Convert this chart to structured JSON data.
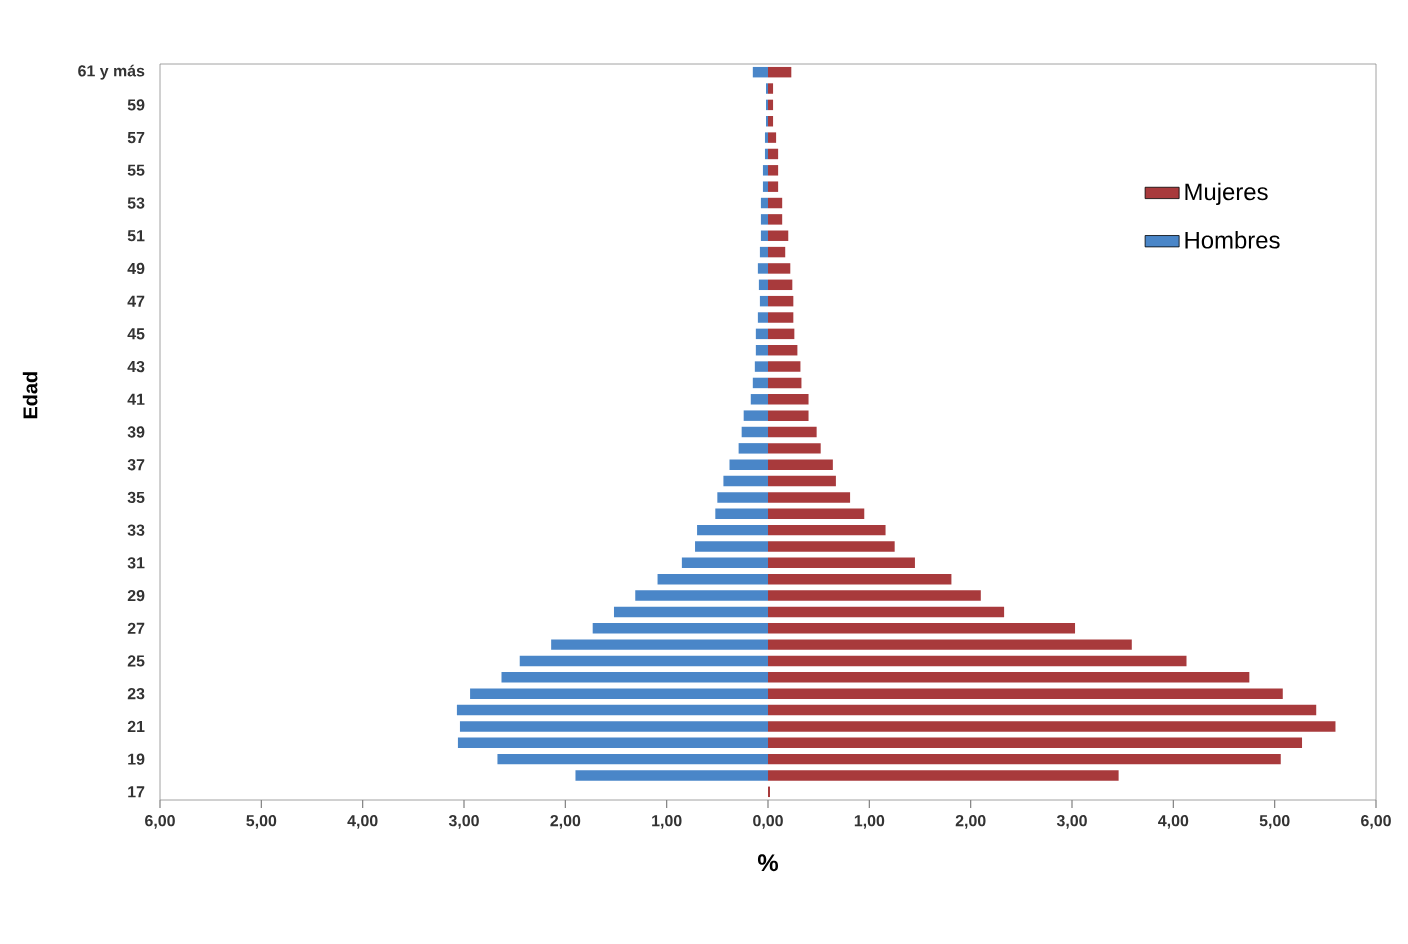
{
  "chart_data": {
    "type": "bar",
    "orientation": "horizontal",
    "xlabel": "%",
    "ylabel": "Edad",
    "categories": [
      "61 y más",
      null,
      "59",
      null,
      "57",
      null,
      "55",
      null,
      "53",
      null,
      "51",
      null,
      "49",
      null,
      "47",
      null,
      "45",
      null,
      "43",
      null,
      "41",
      null,
      "39",
      null,
      "37",
      null,
      "35",
      null,
      "33",
      null,
      "31",
      null,
      "29",
      null,
      "27",
      null,
      "25",
      null,
      "23",
      null,
      "21",
      null,
      "19",
      null,
      "17"
    ],
    "series": [
      {
        "name": "Mujeres",
        "color": "#a83a3c",
        "values": [
          0.23,
          0.05,
          0.05,
          0.05,
          0.08,
          0.1,
          0.1,
          0.1,
          0.14,
          0.14,
          0.2,
          0.17,
          0.22,
          0.24,
          0.25,
          0.25,
          0.26,
          0.29,
          0.32,
          0.33,
          0.4,
          0.4,
          0.48,
          0.52,
          0.64,
          0.67,
          0.81,
          0.95,
          1.16,
          1.25,
          1.45,
          1.81,
          2.1,
          2.33,
          3.03,
          3.59,
          4.13,
          4.75,
          5.08,
          5.41,
          5.6,
          5.27,
          5.06,
          3.46,
          0.02
        ]
      },
      {
        "name": "Hombres",
        "color": "#4a86c8",
        "values": [
          -0.15,
          -0.02,
          -0.02,
          -0.02,
          -0.03,
          -0.03,
          -0.05,
          -0.05,
          -0.07,
          -0.07,
          -0.07,
          -0.08,
          -0.1,
          -0.09,
          -0.08,
          -0.1,
          -0.12,
          -0.12,
          -0.13,
          -0.15,
          -0.17,
          -0.24,
          -0.26,
          -0.29,
          -0.38,
          -0.44,
          -0.5,
          -0.52,
          -0.7,
          -0.72,
          -0.85,
          -1.09,
          -1.31,
          -1.52,
          -1.73,
          -2.14,
          -2.45,
          -2.63,
          -2.94,
          -3.07,
          -3.04,
          -3.06,
          -2.67,
          -1.9,
          0
        ]
      }
    ],
    "xlim": [
      -6,
      6
    ],
    "xticks": [
      {
        "value": -6,
        "label": "6,00"
      },
      {
        "value": -5,
        "label": "5,00"
      },
      {
        "value": -4,
        "label": "4,00"
      },
      {
        "value": -3,
        "label": "3,00"
      },
      {
        "value": -2,
        "label": "2,00"
      },
      {
        "value": -1,
        "label": "1,00"
      },
      {
        "value": 0,
        "label": "0,00"
      },
      {
        "value": 1,
        "label": "1,00"
      },
      {
        "value": 2,
        "label": "2,00"
      },
      {
        "value": 3,
        "label": "3,00"
      },
      {
        "value": 4,
        "label": "4,00"
      },
      {
        "value": 5,
        "label": "5,00"
      },
      {
        "value": 6,
        "label": "6,00"
      }
    ],
    "legend": "top right",
    "grid": false,
    "stacked": true
  }
}
